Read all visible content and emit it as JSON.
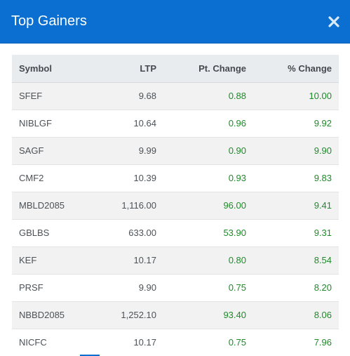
{
  "modal": {
    "title": "Top Gainers",
    "close_icon": "close-icon",
    "colors": {
      "header_bg": "#0a6fd1",
      "positive": "#1f8a2a"
    }
  },
  "table": {
    "columns": [
      "Symbol",
      "LTP",
      "Pt. Change",
      "% Change"
    ],
    "rows": [
      {
        "symbol": "SFEF",
        "ltp": "9.68",
        "pt_change": "0.88",
        "pct_change": "10.00"
      },
      {
        "symbol": "NIBLGF",
        "ltp": "10.64",
        "pt_change": "0.96",
        "pct_change": "9.92"
      },
      {
        "symbol": "SAGF",
        "ltp": "9.99",
        "pt_change": "0.90",
        "pct_change": "9.90"
      },
      {
        "symbol": "CMF2",
        "ltp": "10.39",
        "pt_change": "0.93",
        "pct_change": "9.83"
      },
      {
        "symbol": "MBLD2085",
        "ltp": "1,116.00",
        "pt_change": "96.00",
        "pct_change": "9.41"
      },
      {
        "symbol": "GBLBS",
        "ltp": "633.00",
        "pt_change": "53.90",
        "pct_change": "9.31"
      },
      {
        "symbol": "KEF",
        "ltp": "10.17",
        "pt_change": "0.80",
        "pct_change": "8.54"
      },
      {
        "symbol": "PRSF",
        "ltp": "9.90",
        "pt_change": "0.75",
        "pct_change": "8.20"
      },
      {
        "symbol": "NBBD2085",
        "ltp": "1,252.10",
        "pt_change": "93.40",
        "pct_change": "8.06"
      },
      {
        "symbol": "NICFC",
        "ltp": "10.17",
        "pt_change": "0.75",
        "pct_change": "7.96"
      }
    ]
  }
}
